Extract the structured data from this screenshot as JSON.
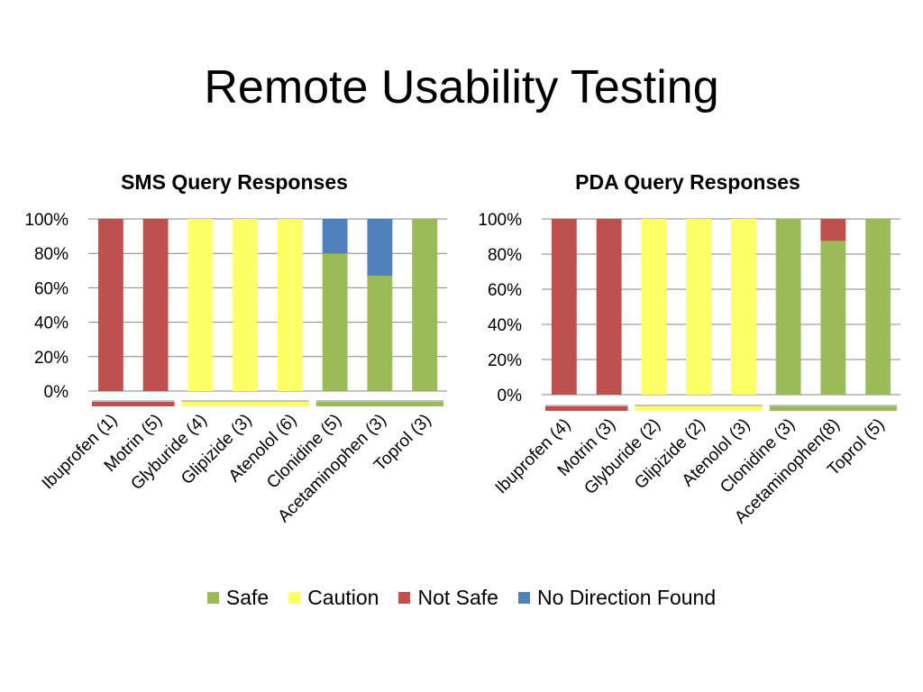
{
  "slide": {
    "title": "Remote Usability Testing"
  },
  "colors": {
    "safe": "#9BBB59",
    "caution": "#FFFF66",
    "notsafe": "#C0504D",
    "nodir": "#4F81BD",
    "grid": "#868686"
  },
  "legend": [
    {
      "key": "safe",
      "label": "Safe"
    },
    {
      "key": "caution",
      "label": "Caution"
    },
    {
      "key": "notsafe",
      "label": "Not Safe"
    },
    {
      "key": "nodir",
      "label": "No Direction Found"
    }
  ],
  "chart_data": [
    {
      "type": "bar",
      "stacked": true,
      "title": "SMS Query Responses",
      "categories": [
        "Ibuprofen (1)",
        "Motrin (5)",
        "Glyburide (4)",
        "Glipizide (3)",
        "Atenolol (6)",
        "Clonidine (5)",
        "Acetaminophen (3)",
        "Toprol (3)"
      ],
      "ylim": [
        0,
        100
      ],
      "yticks": [
        "0%",
        "20%",
        "40%",
        "60%",
        "80%",
        "100%"
      ],
      "series": [
        {
          "name": "Safe",
          "key": "safe",
          "values": [
            0,
            0,
            0,
            0,
            0,
            80,
            67,
            100
          ]
        },
        {
          "name": "Caution",
          "key": "caution",
          "values": [
            0,
            0,
            100,
            100,
            100,
            0,
            0,
            0
          ]
        },
        {
          "name": "Not Safe",
          "key": "notsafe",
          "values": [
            100,
            100,
            0,
            0,
            0,
            0,
            0,
            0
          ]
        },
        {
          "name": "No Direction Found",
          "key": "nodir",
          "values": [
            0,
            0,
            0,
            0,
            0,
            20,
            33,
            0
          ]
        }
      ],
      "groups": [
        {
          "key": "notsafe",
          "from": 0,
          "to": 1
        },
        {
          "key": "caution",
          "from": 2,
          "to": 4
        },
        {
          "key": "safe",
          "from": 5,
          "to": 7
        }
      ]
    },
    {
      "type": "bar",
      "stacked": true,
      "title": "PDA Query Responses",
      "categories": [
        "Ibuprofen (4)",
        "Motrin (3)",
        "Glyburide (2)",
        "Glipizide (2)",
        "Atenolol (3)",
        "Clonidine (3)",
        "Acetaminophen(8)",
        "Toprol (5)"
      ],
      "ylim": [
        0,
        100
      ],
      "yticks": [
        "0%",
        "20%",
        "40%",
        "60%",
        "80%",
        "100%"
      ],
      "series": [
        {
          "name": "Safe",
          "key": "safe",
          "values": [
            0,
            0,
            0,
            0,
            0,
            100,
            87.5,
            100
          ]
        },
        {
          "name": "Caution",
          "key": "caution",
          "values": [
            0,
            0,
            100,
            100,
            100,
            0,
            0,
            0
          ]
        },
        {
          "name": "Not Safe",
          "key": "notsafe",
          "values": [
            100,
            100,
            0,
            0,
            0,
            0,
            12.5,
            0
          ]
        },
        {
          "name": "No Direction Found",
          "key": "nodir",
          "values": [
            0,
            0,
            0,
            0,
            0,
            0,
            0,
            0
          ]
        }
      ],
      "groups": [
        {
          "key": "notsafe",
          "from": 0,
          "to": 1
        },
        {
          "key": "caution",
          "from": 2,
          "to": 4
        },
        {
          "key": "safe",
          "from": 5,
          "to": 7
        }
      ]
    }
  ]
}
